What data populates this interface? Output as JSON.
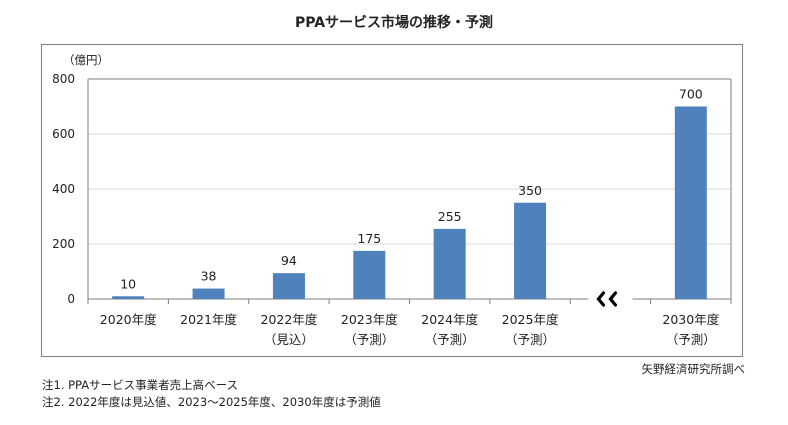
{
  "chart_data": {
    "type": "bar",
    "title": "PPAサービス市場の推移・予測",
    "unit_label": "（億円）",
    "categories": [
      {
        "label": "2020年度",
        "sub": ""
      },
      {
        "label": "2021年度",
        "sub": ""
      },
      {
        "label": "2022年度",
        "sub": "（見込）"
      },
      {
        "label": "2023年度",
        "sub": "（予測）"
      },
      {
        "label": "2024年度",
        "sub": "（予測）"
      },
      {
        "label": "2025年度",
        "sub": "（予測）"
      },
      {
        "label": "2030年度",
        "sub": "（予測）"
      }
    ],
    "values": [
      10,
      38,
      94,
      175,
      255,
      350,
      700
    ],
    "data_labels": [
      "10",
      "38",
      "94",
      "175",
      "255",
      "350",
      "700"
    ],
    "ylim": [
      0,
      800
    ],
    "yticks": [
      0,
      200,
      400,
      600,
      800
    ],
    "axis_break_after_index": 5,
    "grid": true,
    "bar_color": "#4f81bd",
    "grid_color": "#d9d9d9"
  },
  "source": "矢野経済研究所調べ",
  "notes": [
    "注1.  PPAサービス事業者売上高ベース",
    "注2.  2022年度は見込値、2023～2025年度、2030年度は予測値"
  ]
}
